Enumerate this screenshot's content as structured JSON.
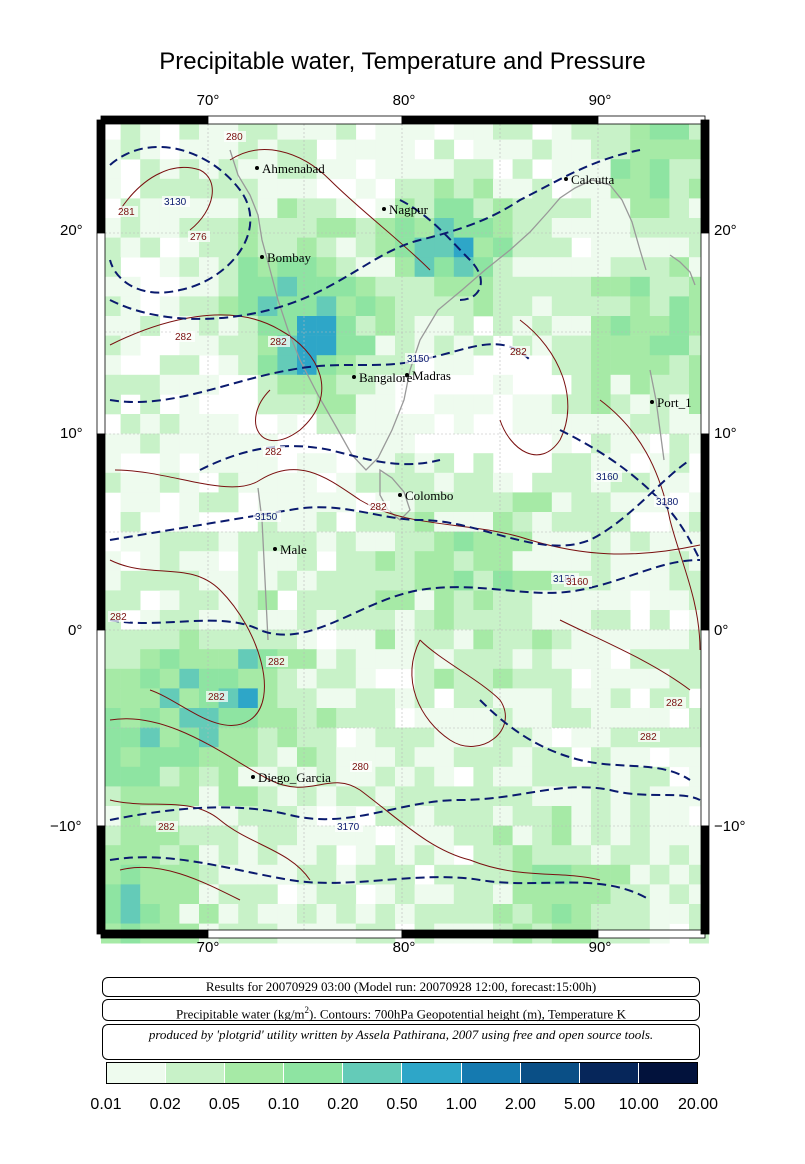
{
  "title": "Precipitable water, Temperature and Pressure",
  "map": {
    "lon_labels": [
      "70°",
      "80°",
      "90°"
    ],
    "lat_labels": [
      "20°",
      "10°",
      "0°",
      "−10°"
    ],
    "cities": [
      {
        "name": "Ahmenabad"
      },
      {
        "name": "Nagpur"
      },
      {
        "name": "Calcutta"
      },
      {
        "name": "Bombay"
      },
      {
        "name": "Bangalore"
      },
      {
        "name": "Madras"
      },
      {
        "name": "Port_1"
      },
      {
        "name": "Colombo"
      },
      {
        "name": "Male"
      },
      {
        "name": "Diego_Garcia"
      }
    ],
    "contour_labels": [
      "280",
      "3130",
      "281",
      "276",
      "282",
      "282",
      "3150",
      "282",
      "282",
      "3160",
      "3180",
      "3150",
      "282",
      "3180",
      "3160",
      "282",
      "282",
      "282",
      "280",
      "3170",
      "282",
      "282",
      "282"
    ]
  },
  "info": {
    "line1": "Results for 20070929 03:00 (Model run: 20070928 12:00, forecast:15:00h)",
    "line2_pre": "Precipitable water (kg/m",
    "line2_sup": "2",
    "line2_post": ").  Contours: 700hPa Geopotential height (m), Temperature K",
    "line3": "produced by 'plotgrid' utility written by Assela Pathirana, 2007 using free and open source tools."
  },
  "colorbar": {
    "labels": [
      "0.01",
      "0.02",
      "0.05",
      "0.10",
      "0.20",
      "0.50",
      "1.00",
      "2.00",
      "5.00",
      "10.00",
      "20.00"
    ],
    "colors": [
      "#eefbee",
      "#c8f2c8",
      "#a6eaa6",
      "#8ee4a2",
      "#64cbb8",
      "#2ea6c8",
      "#157ab0",
      "#0a4f86",
      "#06265a",
      "#02123c"
    ]
  }
}
